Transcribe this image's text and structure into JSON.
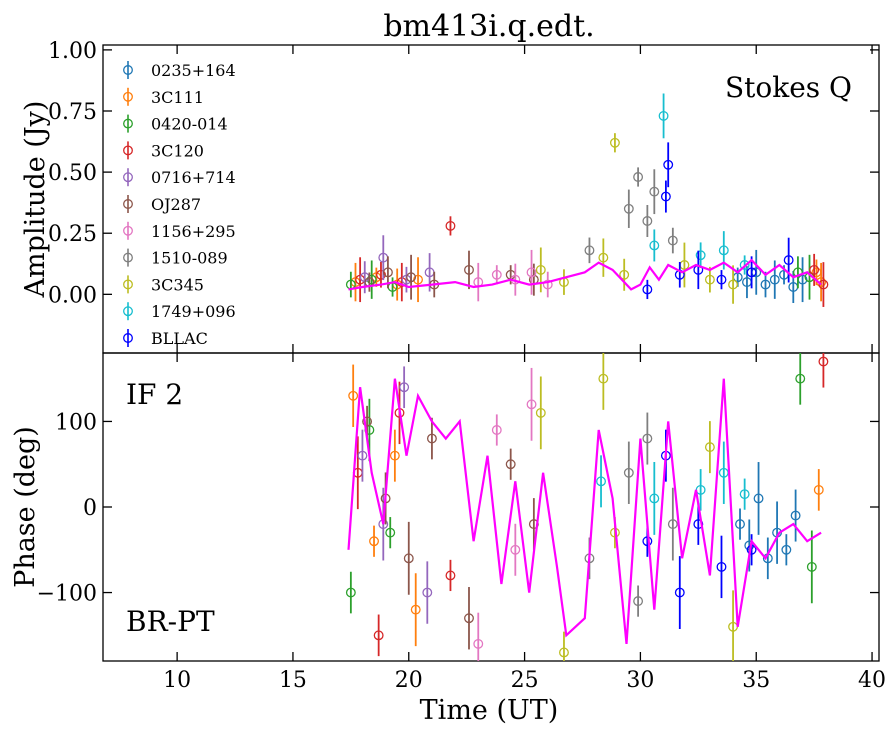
{
  "chart_data": [
    {
      "panel": "top",
      "type": "scatter",
      "title": "bm413i.q.edt.",
      "annotation": "Stokes Q",
      "ylabel": "Amplitude (Jy)",
      "xlim": [
        6.8,
        40.3
      ],
      "ylim": [
        -0.24,
        1.02
      ],
      "yticks": [
        "0.00",
        "0.25",
        "0.50",
        "0.75",
        "1.00"
      ],
      "legend_position": "upper-left",
      "series": [
        {
          "name": "0235+164",
          "color": "#1f77b4",
          "x": [
            34.2,
            34.6,
            35.0,
            35.4,
            35.8,
            36.2,
            36.6,
            37.0
          ],
          "y": [
            0.07,
            0.05,
            0.09,
            0.04,
            0.06,
            0.08,
            0.03,
            0.06
          ]
        },
        {
          "name": "3C111",
          "color": "#ff7f0e",
          "x": [
            17.7,
            18.6,
            19.5,
            20.4,
            37.6,
            37.8
          ],
          "y": [
            0.05,
            0.07,
            0.04,
            0.06,
            0.09,
            0.05
          ]
        },
        {
          "name": "0420-014",
          "color": "#2ca02c",
          "x": [
            17.5,
            18.4,
            19.3,
            36.8,
            37.3
          ],
          "y": [
            0.04,
            0.06,
            0.03,
            0.09,
            0.07
          ]
        },
        {
          "name": "3C120",
          "color": "#d62728",
          "x": [
            17.9,
            18.8,
            19.7,
            21.8,
            37.5,
            37.9
          ],
          "y": [
            0.06,
            0.08,
            0.05,
            0.28,
            0.1,
            0.04
          ]
        },
        {
          "name": "0716+714",
          "color": "#9467bd",
          "x": [
            18.1,
            18.9,
            19.9,
            20.9
          ],
          "y": [
            0.07,
            0.15,
            0.06,
            0.09
          ]
        },
        {
          "name": "OJ287",
          "color": "#8c564b",
          "x": [
            18.3,
            19.1,
            20.1,
            21.1,
            22.6,
            24.4,
            25.4
          ],
          "y": [
            0.05,
            0.09,
            0.07,
            0.04,
            0.1,
            0.08,
            0.06
          ]
        },
        {
          "name": "1156+295",
          "color": "#e377c2",
          "x": [
            23.0,
            23.8,
            24.6,
            25.3,
            26.0
          ],
          "y": [
            0.05,
            0.08,
            0.06,
            0.09,
            0.04
          ]
        },
        {
          "name": "1510-089",
          "color": "#7f7f7f",
          "x": [
            27.8,
            29.5,
            29.9,
            30.3,
            30.6,
            31.4
          ],
          "y": [
            0.18,
            0.35,
            0.48,
            0.3,
            0.42,
            0.22
          ]
        },
        {
          "name": "3C345",
          "color": "#bcbd22",
          "x": [
            25.7,
            26.7,
            28.4,
            28.9,
            29.3,
            31.9,
            33.0,
            34.0
          ],
          "y": [
            0.1,
            0.05,
            0.15,
            0.62,
            0.08,
            0.12,
            0.06,
            0.04
          ]
        },
        {
          "name": "1749+096",
          "color": "#17becf",
          "x": [
            30.6,
            31.0,
            32.6,
            33.6,
            34.5
          ],
          "y": [
            0.2,
            0.73,
            0.16,
            0.18,
            0.12
          ]
        },
        {
          "name": "BLLAC",
          "color": "#0000ff",
          "x": [
            30.3,
            31.1,
            31.2,
            31.7,
            32.5,
            33.5,
            34.8,
            36.4
          ],
          "y": [
            0.02,
            0.4,
            0.53,
            0.08,
            0.1,
            0.06,
            0.09,
            0.14
          ]
        }
      ],
      "median_line": {
        "color": "#ff00ff",
        "x": [
          17.4,
          18.0,
          18.8,
          19.4,
          20.0,
          21.0,
          22.0,
          22.8,
          23.6,
          24.4,
          25.2,
          26.0,
          26.8,
          27.6,
          28.2,
          28.8,
          29.6,
          30.0,
          30.4,
          30.8,
          31.2,
          31.8,
          32.4,
          33.0,
          33.6,
          34.2,
          34.8,
          35.4,
          36.0,
          36.6,
          37.2,
          37.8
        ],
        "y": [
          0.02,
          0.03,
          0.04,
          0.05,
          0.03,
          0.04,
          0.05,
          0.03,
          0.04,
          0.06,
          0.04,
          0.05,
          0.07,
          0.09,
          0.13,
          0.1,
          0.02,
          0.04,
          0.11,
          0.06,
          0.12,
          0.09,
          0.12,
          0.1,
          0.13,
          0.09,
          0.14,
          0.08,
          0.12,
          0.07,
          0.09,
          0.04
        ]
      }
    },
    {
      "panel": "bottom",
      "type": "scatter",
      "annotation_top": "IF 2",
      "annotation_bottom": "BR-PT",
      "xlabel": "Time (UT)",
      "ylabel": "Phase (deg)",
      "xlim": [
        6.8,
        40.3
      ],
      "ylim": [
        -180,
        180
      ],
      "xticks": [
        "10",
        "15",
        "20",
        "25",
        "30",
        "35",
        "40"
      ],
      "yticks": [
        "−100",
        "0",
        "100"
      ],
      "series": [
        {
          "name": "0235+164",
          "color": "#1f77b4",
          "x": [
            34.3,
            34.7,
            35.1,
            35.5,
            35.9,
            36.3,
            36.7
          ],
          "y": [
            -20,
            -45,
            10,
            -60,
            -30,
            -50,
            -10
          ]
        },
        {
          "name": "3C111",
          "color": "#ff7f0e",
          "x": [
            17.6,
            18.5,
            19.4,
            20.3,
            37.7
          ],
          "y": [
            130,
            -40,
            60,
            -120,
            20
          ]
        },
        {
          "name": "0420-014",
          "color": "#2ca02c",
          "x": [
            17.5,
            18.3,
            19.2,
            36.9,
            37.4
          ],
          "y": [
            -100,
            90,
            -30,
            150,
            -70
          ]
        },
        {
          "name": "3C120",
          "color": "#d62728",
          "x": [
            17.8,
            18.7,
            19.6,
            21.8,
            37.9
          ],
          "y": [
            40,
            -150,
            110,
            -80,
            170
          ]
        },
        {
          "name": "0716+714",
          "color": "#9467bd",
          "x": [
            18.0,
            18.9,
            19.8,
            20.8
          ],
          "y": [
            60,
            -20,
            140,
            -100
          ]
        },
        {
          "name": "OJ287",
          "color": "#8c564b",
          "x": [
            18.2,
            19.0,
            20.0,
            21.0,
            22.6,
            24.4,
            25.4
          ],
          "y": [
            100,
            10,
            -60,
            80,
            -130,
            50,
            -20
          ]
        },
        {
          "name": "1156+295",
          "color": "#e377c2",
          "x": [
            23.0,
            23.8,
            24.6,
            25.3
          ],
          "y": [
            -160,
            90,
            -50,
            120
          ]
        },
        {
          "name": "1510-089",
          "color": "#7f7f7f",
          "x": [
            27.8,
            29.5,
            29.9,
            30.3,
            31.4
          ],
          "y": [
            -60,
            40,
            -110,
            80,
            -20
          ]
        },
        {
          "name": "3C345",
          "color": "#bcbd22",
          "x": [
            25.7,
            26.7,
            28.4,
            28.9,
            33.0,
            34.0
          ],
          "y": [
            110,
            -170,
            150,
            -30,
            70,
            -140
          ]
        },
        {
          "name": "1749+096",
          "color": "#17becf",
          "x": [
            28.3,
            30.6,
            32.6,
            33.6,
            34.5
          ],
          "y": [
            30,
            10,
            20,
            40,
            15
          ]
        },
        {
          "name": "BLLAC",
          "color": "#0000ff",
          "x": [
            30.3,
            31.1,
            31.7,
            32.5,
            33.5,
            34.8
          ],
          "y": [
            -40,
            60,
            -100,
            -20,
            -70,
            -50
          ]
        }
      ],
      "median_line": {
        "color": "#ff00ff",
        "x": [
          17.4,
          17.9,
          18.4,
          18.9,
          19.4,
          19.9,
          20.4,
          21.0,
          21.6,
          22.2,
          22.8,
          23.4,
          24.0,
          24.6,
          25.2,
          25.8,
          26.4,
          26.8,
          27.6,
          28.2,
          28.8,
          29.4,
          30.0,
          30.6,
          31.2,
          31.8,
          32.4,
          33.0,
          33.6,
          34.2,
          34.8,
          35.4,
          36.0,
          36.6,
          37.2,
          37.8
        ],
        "y": [
          -50,
          140,
          40,
          -20,
          150,
          60,
          130,
          100,
          80,
          100,
          -40,
          60,
          -90,
          30,
          -100,
          40,
          -70,
          -150,
          -130,
          90,
          10,
          -160,
          80,
          -120,
          100,
          -60,
          20,
          -80,
          150,
          -140,
          -40,
          -60,
          -30,
          -20,
          -40,
          -30
        ]
      }
    }
  ]
}
